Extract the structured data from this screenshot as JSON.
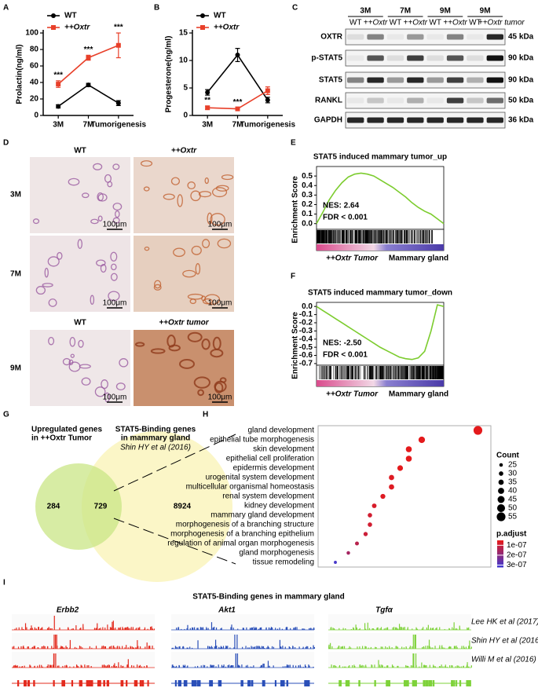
{
  "panel_labels": [
    "A",
    "B",
    "C",
    "D",
    "E",
    "F",
    "G",
    "H",
    "I"
  ],
  "chart_data": [
    {
      "type": "line",
      "ylabel": "Prolactin(ng/ml)",
      "categories": [
        "3M",
        "7M",
        "Tumorigenesis"
      ],
      "series": [
        {
          "name": "WT",
          "color": "#000000",
          "values": [
            11,
            37,
            15
          ],
          "errors": [
            2,
            2,
            3
          ]
        },
        {
          "name": "++Oxtr",
          "color": "#e8402a",
          "values": [
            38,
            70,
            85
          ],
          "errors": [
            4,
            3,
            15
          ]
        }
      ],
      "annotations": [
        "***",
        "***",
        "***"
      ],
      "ylim": [
        0,
        100
      ],
      "yticks": [
        0,
        20,
        40,
        60,
        80,
        100
      ]
    },
    {
      "type": "line",
      "ylabel": "Progesterone(ng/ml)",
      "categories": [
        "3M",
        "7M",
        "Tumorigenesis"
      ],
      "series": [
        {
          "name": "WT",
          "color": "#000000",
          "values": [
            4.2,
            11,
            2.8
          ],
          "errors": [
            0.5,
            1.2,
            0.5
          ]
        },
        {
          "name": "++Oxtr",
          "color": "#e8402a",
          "values": [
            1.4,
            1.2,
            4.5
          ],
          "errors": [
            0.3,
            0.2,
            0.7
          ]
        }
      ],
      "annotations": [
        "**",
        "***"
      ],
      "ylim": [
        0,
        15
      ],
      "yticks": [
        0,
        5,
        10,
        15
      ]
    },
    {
      "type": "enrichment",
      "title": "STAT5 induced mammary tumor_up",
      "ylabel": "Enrichment Score",
      "color": "#7ccc2e",
      "values": [
        0,
        0.12,
        0.25,
        0.35,
        0.43,
        0.49,
        0.52,
        0.53,
        0.52,
        0.5,
        0.46,
        0.42,
        0.38,
        0.33,
        0.28,
        0.22,
        0.17,
        0.13,
        0.1,
        0.05,
        0
      ],
      "ylim": [
        -0.06,
        0.6
      ],
      "yticks": [
        {
          "value": 0,
          "label": "0.0"
        },
        0.1,
        0.2,
        0.3,
        0.4,
        0.5
      ],
      "annotations": [
        "NES: 2.64",
        "FDR < 0.001"
      ],
      "groups": [
        "++Oxtr Tumor",
        "Mammary gland"
      ]
    },
    {
      "type": "enrichment",
      "title": "STAT5 induced mammary tumor_down",
      "ylabel": "Enrichment Score",
      "color": "#7ccc2e",
      "values": [
        0,
        -0.05,
        -0.1,
        -0.15,
        -0.2,
        -0.25,
        -0.3,
        -0.35,
        -0.4,
        -0.45,
        -0.5,
        -0.54,
        -0.58,
        -0.62,
        -0.64,
        -0.65,
        -0.63,
        -0.55,
        -0.3,
        0.02,
        0
      ],
      "ylim": [
        -0.72,
        0.05
      ],
      "yticks": [
        {
          "value": 0,
          "label": "0.0"
        },
        -0.1,
        -0.2,
        -0.3,
        -0.4,
        -0.5,
        -0.6,
        -0.7
      ],
      "annotations": [
        "NES: -2.50",
        "FDR < 0.001"
      ],
      "groups": [
        "++Oxtr Tumor",
        "Mammary gland"
      ]
    },
    {
      "type": "dot",
      "categories": [
        "gland development",
        "epithelial tube morphogenesis",
        "skin development",
        "epithelial cell proliferation",
        "epidermis development",
        "urogenital system development",
        "multicellular organismal homeostasis",
        "renal system development",
        "kidney development",
        "mammary gland development",
        "morphogenesis of a branching structure",
        "morphogenesis of a branching epithelium",
        "regulation of animal organ morphogenesis",
        "gland morphogenesis",
        "tissue remodeling"
      ],
      "values": [
        55,
        42,
        39,
        39,
        37,
        35,
        35,
        33,
        31,
        30,
        30,
        29,
        27,
        25,
        22
      ],
      "p_adjust": [
        5e-08,
        5e-08,
        5e-08,
        5e-08,
        5e-08,
        6e-08,
        6e-08,
        6e-08,
        7e-08,
        8e-08,
        8e-08,
        9e-08,
        1.2e-07,
        1.5e-07,
        3e-07
      ],
      "xlim": [
        18,
        58
      ],
      "size_legend": {
        "title": "Count",
        "values": [
          25,
          30,
          35,
          40,
          45,
          50,
          55
        ]
      },
      "color_legend": {
        "title": "p.adjust",
        "ticks": [
          {
            "value": 1e-07,
            "label": "1e-07"
          },
          {
            "value": 2e-07,
            "label": "2e-07"
          },
          {
            "value": 3e-07,
            "label": "3e-07"
          }
        ],
        "lim": [
          5e-08,
          3.2e-07
        ],
        "colors": [
          "#e41a1c",
          "#3b3bd8"
        ]
      }
    }
  ],
  "blot": {
    "timepoints": [
      "3M",
      "7M",
      "9M",
      "9M"
    ],
    "genotypes": [
      "WT",
      "++Oxtr",
      "WT",
      "++Oxtr",
      "WT",
      "++Oxtr",
      "WT",
      "++Oxtr tumor"
    ],
    "rows": [
      {
        "protein": "OXTR",
        "size": "45 kDa"
      },
      {
        "protein": "p-STAT5",
        "size": "90 kDa"
      },
      {
        "protein": "STAT5",
        "size": "90 kDa"
      },
      {
        "protein": "RANKL",
        "size": "50 kDa"
      },
      {
        "protein": "GAPDH",
        "size": "36 kDa"
      }
    ]
  },
  "histology": {
    "columns": [
      "WT",
      "++Oxtr"
    ],
    "rows": [
      "3M",
      "7M"
    ],
    "row3_columns": [
      "WT",
      "++Oxtr tumor"
    ],
    "row3": "9M",
    "scale_bar": "100μm"
  },
  "venn": {
    "left_title": [
      "Upregulated genes",
      "in ++Oxtr Tumor"
    ],
    "right_title": [
      "STAT5-Binding genes",
      "in mammary gland"
    ],
    "right_source": "Shin HY  et al (2016)",
    "counts": [
      284,
      729,
      8924
    ]
  },
  "tracks": {
    "title": "STAT5-Binding genes in mammary gland",
    "genes": [
      "Erbb2",
      "Akt1",
      "Tgfα"
    ],
    "colors": [
      "#e32b1e",
      "#2a4fb8",
      "#7ed23a"
    ],
    "sources": [
      "Lee HK  et al (2017)",
      "Shin HY  et al (2016)",
      "Willi M  et al (2016)"
    ]
  }
}
